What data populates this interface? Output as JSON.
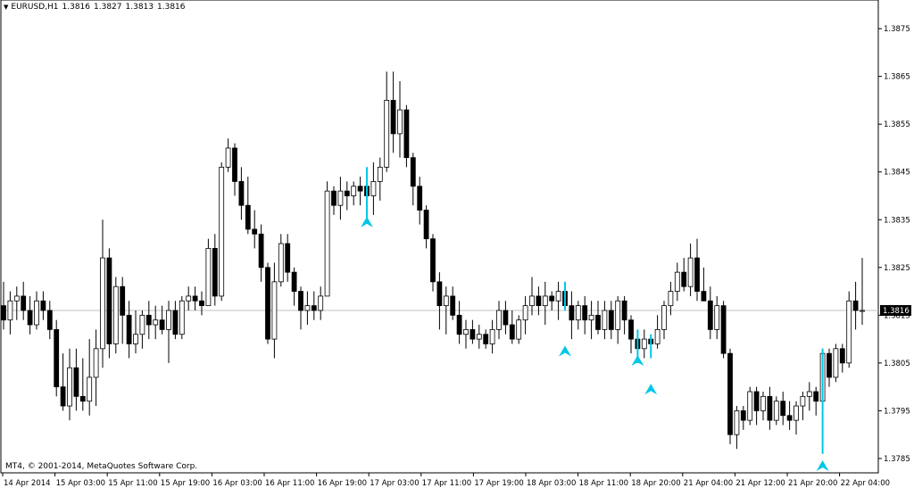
{
  "header": {
    "symbol": "EURUSD,H1",
    "open": "1.3816",
    "high": "1.3827",
    "low": "1.3813",
    "close": "1.3816"
  },
  "footer": {
    "copyright": "MT4, © 2001-2014, MetaQuotes Software Corp."
  },
  "colors": {
    "background": "#ffffff",
    "frame": "#000000",
    "bull_fill": "#ffffff",
    "bear_fill": "#000000",
    "arrow": "#00c8e6",
    "current_price_line": "#c0c0c0"
  },
  "chart_data": {
    "type": "candlestick",
    "symbol": "EURUSD",
    "timeframe": "H1",
    "ylim": [
      1.3782,
      1.3881
    ],
    "y_ticks": [
      "1.3875",
      "1.3865",
      "1.3855",
      "1.3845",
      "1.3835",
      "1.3825",
      "1.3815",
      "1.3805",
      "1.3795",
      "1.3785"
    ],
    "x_ticks": [
      "14 Apr 2014",
      "15 Apr 03:00",
      "15 Apr 11:00",
      "15 Apr 19:00",
      "16 Apr 03:00",
      "16 Apr 11:00",
      "16 Apr 19:00",
      "17 Apr 03:00",
      "17 Apr 11:00",
      "17 Apr 19:00",
      "18 Apr 03:00",
      "18 Apr 11:00",
      "18 Apr 20:00",
      "21 Apr 04:00",
      "21 Apr 12:00",
      "21 Apr 20:00",
      "22 Apr 04:00"
    ],
    "current_price": "1.3816",
    "candles": [
      [
        1.3817,
        1.3822,
        1.3812,
        1.3814
      ],
      [
        1.3814,
        1.382,
        1.3811,
        1.3818
      ],
      [
        1.3818,
        1.3821,
        1.3814,
        1.3819
      ],
      [
        1.3819,
        1.3822,
        1.3814,
        1.3816
      ],
      [
        1.3816,
        1.3819,
        1.3811,
        1.3813
      ],
      [
        1.3813,
        1.382,
        1.3812,
        1.3818
      ],
      [
        1.3818,
        1.382,
        1.3814,
        1.3816
      ],
      [
        1.3816,
        1.3818,
        1.381,
        1.3812
      ],
      [
        1.3812,
        1.3814,
        1.3798,
        1.38
      ],
      [
        1.38,
        1.3807,
        1.3795,
        1.3796
      ],
      [
        1.3796,
        1.3808,
        1.3793,
        1.3804
      ],
      [
        1.3804,
        1.3808,
        1.3795,
        1.3798
      ],
      [
        1.3798,
        1.3806,
        1.3795,
        1.3797
      ],
      [
        1.3797,
        1.381,
        1.3794,
        1.3802
      ],
      [
        1.3802,
        1.3812,
        1.3796,
        1.3808
      ],
      [
        1.3808,
        1.3835,
        1.3804,
        1.3827
      ],
      [
        1.3827,
        1.3829,
        1.3806,
        1.3809
      ],
      [
        1.3809,
        1.3823,
        1.3807,
        1.3821
      ],
      [
        1.3821,
        1.3823,
        1.3809,
        1.3815
      ],
      [
        1.3815,
        1.3818,
        1.3806,
        1.3809
      ],
      [
        1.3809,
        1.3816,
        1.3807,
        1.3811
      ],
      [
        1.3811,
        1.3816,
        1.3808,
        1.3815
      ],
      [
        1.3815,
        1.3818,
        1.381,
        1.3813
      ],
      [
        1.3813,
        1.3817,
        1.381,
        1.3814
      ],
      [
        1.3814,
        1.3817,
        1.3811,
        1.3812
      ],
      [
        1.3812,
        1.3818,
        1.3805,
        1.3816
      ],
      [
        1.3816,
        1.3818,
        1.381,
        1.3811
      ],
      [
        1.3811,
        1.3819,
        1.381,
        1.3818
      ],
      [
        1.3818,
        1.3821,
        1.3816,
        1.3819
      ],
      [
        1.3819,
        1.3821,
        1.3816,
        1.3818
      ],
      [
        1.3818,
        1.382,
        1.3815,
        1.3817
      ],
      [
        1.3817,
        1.3831,
        1.3817,
        1.3829
      ],
      [
        1.3829,
        1.3832,
        1.3817,
        1.3819
      ],
      [
        1.3819,
        1.3847,
        1.3818,
        1.3846
      ],
      [
        1.3846,
        1.3852,
        1.3845,
        1.385
      ],
      [
        1.385,
        1.3851,
        1.384,
        1.3843
      ],
      [
        1.3843,
        1.3846,
        1.3835,
        1.3838
      ],
      [
        1.3838,
        1.3844,
        1.3832,
        1.3833
      ],
      [
        1.3833,
        1.3837,
        1.3829,
        1.3832
      ],
      [
        1.3832,
        1.3834,
        1.3822,
        1.3825
      ],
      [
        1.3825,
        1.3826,
        1.3809,
        1.381
      ],
      [
        1.381,
        1.3826,
        1.3806,
        1.3822
      ],
      [
        1.3822,
        1.3832,
        1.3821,
        1.383
      ],
      [
        1.383,
        1.3832,
        1.3822,
        1.3824
      ],
      [
        1.3824,
        1.3825,
        1.3817,
        1.382
      ],
      [
        1.382,
        1.3821,
        1.3812,
        1.3816
      ],
      [
        1.3816,
        1.382,
        1.3813,
        1.3817
      ],
      [
        1.3817,
        1.382,
        1.3814,
        1.3816
      ],
      [
        1.3816,
        1.3821,
        1.3814,
        1.3819
      ],
      [
        1.3819,
        1.3843,
        1.3819,
        1.3841
      ],
      [
        1.3841,
        1.3842,
        1.3836,
        1.3838
      ],
      [
        1.3838,
        1.3844,
        1.3835,
        1.3841
      ],
      [
        1.3841,
        1.3843,
        1.3837,
        1.384
      ],
      [
        1.384,
        1.3843,
        1.3838,
        1.3842
      ],
      [
        1.3842,
        1.3844,
        1.3838,
        1.3841
      ],
      [
        1.3842,
        1.3846,
        1.3835,
        1.384
      ],
      [
        1.384,
        1.3847,
        1.3836,
        1.3843
      ],
      [
        1.3843,
        1.3848,
        1.3839,
        1.3846
      ],
      [
        1.3846,
        1.3866,
        1.3845,
        1.386
      ],
      [
        1.386,
        1.3866,
        1.3849,
        1.3853
      ],
      [
        1.3853,
        1.3864,
        1.3848,
        1.3858
      ],
      [
        1.3858,
        1.3859,
        1.3846,
        1.3848
      ],
      [
        1.3848,
        1.3849,
        1.3838,
        1.3842
      ],
      [
        1.3842,
        1.3844,
        1.3834,
        1.3837
      ],
      [
        1.3837,
        1.3838,
        1.3829,
        1.3831
      ],
      [
        1.3831,
        1.3832,
        1.382,
        1.3822
      ],
      [
        1.3822,
        1.3824,
        1.3812,
        1.3817
      ],
      [
        1.3817,
        1.3821,
        1.3811,
        1.3819
      ],
      [
        1.3819,
        1.3821,
        1.3814,
        1.3815
      ],
      [
        1.3815,
        1.3818,
        1.3809,
        1.3811
      ],
      [
        1.3811,
        1.3814,
        1.3808,
        1.3812
      ],
      [
        1.3812,
        1.3814,
        1.3809,
        1.381
      ],
      [
        1.381,
        1.3813,
        1.3808,
        1.3811
      ],
      [
        1.3811,
        1.3812,
        1.3808,
        1.3809
      ],
      [
        1.3809,
        1.3814,
        1.3807,
        1.3812
      ],
      [
        1.3812,
        1.3818,
        1.381,
        1.3816
      ],
      [
        1.3816,
        1.3818,
        1.3811,
        1.3813
      ],
      [
        1.3813,
        1.3816,
        1.3809,
        1.381
      ],
      [
        1.381,
        1.3815,
        1.3809,
        1.3814
      ],
      [
        1.3814,
        1.3819,
        1.3811,
        1.3817
      ],
      [
        1.3817,
        1.3823,
        1.3815,
        1.3819
      ],
      [
        1.3819,
        1.3821,
        1.3815,
        1.3817
      ],
      [
        1.3817,
        1.3822,
        1.3813,
        1.3819
      ],
      [
        1.3819,
        1.382,
        1.3816,
        1.3818
      ],
      [
        1.3818,
        1.3822,
        1.3814,
        1.382
      ],
      [
        1.382,
        1.3822,
        1.3816,
        1.3817
      ],
      [
        1.3817,
        1.382,
        1.381,
        1.3814
      ],
      [
        1.3814,
        1.3818,
        1.3812,
        1.3817
      ],
      [
        1.3817,
        1.3819,
        1.3811,
        1.3814
      ],
      [
        1.3814,
        1.3818,
        1.381,
        1.3815
      ],
      [
        1.3815,
        1.3818,
        1.3811,
        1.3812
      ],
      [
        1.3812,
        1.3818,
        1.381,
        1.3816
      ],
      [
        1.3816,
        1.3818,
        1.381,
        1.3812
      ],
      [
        1.3812,
        1.3819,
        1.3809,
        1.3818
      ],
      [
        1.3818,
        1.3819,
        1.3811,
        1.3814
      ],
      [
        1.3814,
        1.3815,
        1.3807,
        1.381
      ],
      [
        1.381,
        1.3812,
        1.3805,
        1.3808
      ],
      [
        1.3808,
        1.3812,
        1.3806,
        1.381
      ],
      [
        1.381,
        1.3811,
        1.3806,
        1.3809
      ],
      [
        1.3809,
        1.3815,
        1.3808,
        1.3812
      ],
      [
        1.3812,
        1.3818,
        1.381,
        1.3817
      ],
      [
        1.3817,
        1.3822,
        1.3815,
        1.382
      ],
      [
        1.382,
        1.3826,
        1.3818,
        1.3824
      ],
      [
        1.3824,
        1.3827,
        1.382,
        1.3821
      ],
      [
        1.3821,
        1.383,
        1.3819,
        1.3827
      ],
      [
        1.3827,
        1.3831,
        1.3818,
        1.382
      ],
      [
        1.382,
        1.3825,
        1.3818,
        1.3818
      ],
      [
        1.3818,
        1.3821,
        1.381,
        1.3812
      ],
      [
        1.3812,
        1.3819,
        1.381,
        1.3817
      ],
      [
        1.3817,
        1.3818,
        1.3806,
        1.3807
      ],
      [
        1.3807,
        1.3808,
        1.3788,
        1.379
      ],
      [
        1.379,
        1.3796,
        1.3787,
        1.3795
      ],
      [
        1.3795,
        1.3796,
        1.3791,
        1.3793
      ],
      [
        1.3793,
        1.38,
        1.3792,
        1.3799
      ],
      [
        1.3799,
        1.38,
        1.3792,
        1.3795
      ],
      [
        1.3795,
        1.3799,
        1.3793,
        1.3798
      ],
      [
        1.3798,
        1.38,
        1.3791,
        1.3793
      ],
      [
        1.3793,
        1.3798,
        1.3792,
        1.3797
      ],
      [
        1.3797,
        1.3799,
        1.3792,
        1.3794
      ],
      [
        1.3794,
        1.3797,
        1.3791,
        1.3793
      ],
      [
        1.3793,
        1.3797,
        1.379,
        1.3796
      ],
      [
        1.3796,
        1.3799,
        1.3793,
        1.3798
      ],
      [
        1.3798,
        1.3801,
        1.3795,
        1.3799
      ],
      [
        1.3799,
        1.38,
        1.3794,
        1.3797
      ],
      [
        1.3797,
        1.3808,
        1.3786,
        1.3807
      ],
      [
        1.3807,
        1.3808,
        1.38,
        1.3802
      ],
      [
        1.3802,
        1.3809,
        1.3801,
        1.3808
      ],
      [
        1.3808,
        1.3809,
        1.3803,
        1.3805
      ],
      [
        1.3805,
        1.382,
        1.3804,
        1.3818
      ],
      [
        1.3818,
        1.3822,
        1.3812,
        1.3816
      ],
      [
        1.3816,
        1.3827,
        1.3813,
        1.3816
      ]
    ],
    "arrows": [
      {
        "candle": 55,
        "price": 1.3836
      },
      {
        "candle": 85,
        "price": 1.3809
      },
      {
        "candle": 96,
        "price": 1.3807
      },
      {
        "candle": 98,
        "price": 1.3801
      },
      {
        "candle": 124,
        "price": 1.3785
      }
    ]
  }
}
